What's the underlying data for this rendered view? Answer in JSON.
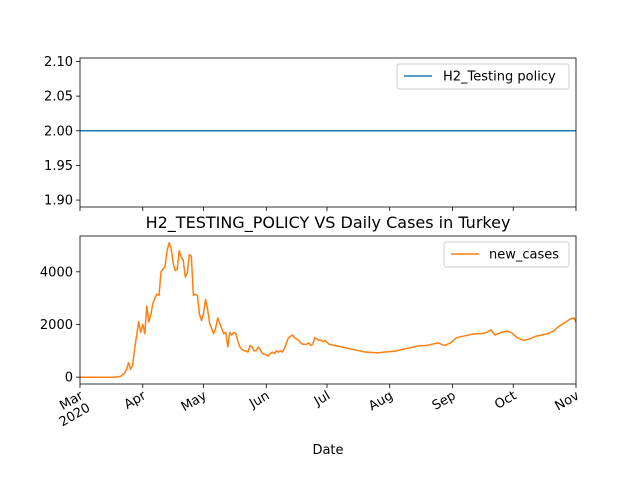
{
  "chart_data": [
    {
      "type": "line",
      "title": "",
      "xlabel": "",
      "ylabel": "",
      "ylim": [
        1.89,
        2.105
      ],
      "yticks": [
        1.9,
        1.95,
        2.0,
        2.05,
        2.1
      ],
      "ytick_labels": [
        "1.90",
        "1.95",
        "2.00",
        "2.05",
        "2.10"
      ],
      "legend": "upper right",
      "grid": false,
      "series": [
        {
          "name": "H2_Testing policy",
          "color": "#1f77b4",
          "x": [
            "2020-03-01",
            "2020-11-01"
          ],
          "values": [
            2.0,
            2.0
          ]
        }
      ]
    },
    {
      "type": "line",
      "title": "H2_TESTING_POLICY VS Daily Cases in Turkey",
      "xlabel": "Date",
      "ylabel": "",
      "ylim": [
        -260,
        5360
      ],
      "yticks": [
        0,
        2000,
        4000
      ],
      "ytick_labels": [
        "0",
        "2000",
        "4000"
      ],
      "xlim": [
        "2020-03-01",
        "2020-11-01"
      ],
      "xtick_labels": [
        {
          "date": "2020-03-01",
          "label": "Mar",
          "sub": "2020"
        },
        {
          "date": "2020-04-01",
          "label": "Apr"
        },
        {
          "date": "2020-05-01",
          "label": "May"
        },
        {
          "date": "2020-06-01",
          "label": "Jun"
        },
        {
          "date": "2020-07-01",
          "label": "Jul"
        },
        {
          "date": "2020-08-01",
          "label": "Aug"
        },
        {
          "date": "2020-09-01",
          "label": "Sep"
        },
        {
          "date": "2020-10-01",
          "label": "Oct"
        },
        {
          "date": "2020-11-01",
          "label": "Nov"
        }
      ],
      "legend": "upper right",
      "grid": false,
      "series": [
        {
          "name": "new_cases",
          "color": "#ff7f0e",
          "points": [
            [
              "2020-03-01",
              0
            ],
            [
              "2020-03-10",
              0
            ],
            [
              "2020-03-18",
              0
            ],
            [
              "2020-03-21",
              30
            ],
            [
              "2020-03-23",
              150
            ],
            [
              "2020-03-24",
              300
            ],
            [
              "2020-03-25",
              550
            ],
            [
              "2020-03-26",
              300
            ],
            [
              "2020-03-27",
              450
            ],
            [
              "2020-03-28",
              1100
            ],
            [
              "2020-03-29",
              1600
            ],
            [
              "2020-03-30",
              2100
            ],
            [
              "2020-03-31",
              1700
            ],
            [
              "2020-04-01",
              2000
            ],
            [
              "2020-04-02",
              1650
            ],
            [
              "2020-04-03",
              2700
            ],
            [
              "2020-04-04",
              2100
            ],
            [
              "2020-04-05",
              2400
            ],
            [
              "2020-04-06",
              2800
            ],
            [
              "2020-04-07",
              3000
            ],
            [
              "2020-04-08",
              3150
            ],
            [
              "2020-04-09",
              3100
            ],
            [
              "2020-04-10",
              4000
            ],
            [
              "2020-04-11",
              4100
            ],
            [
              "2020-04-12",
              4200
            ],
            [
              "2020-04-13",
              4800
            ],
            [
              "2020-04-14",
              5100
            ],
            [
              "2020-04-15",
              4900
            ],
            [
              "2020-04-16",
              4350
            ],
            [
              "2020-04-17",
              4050
            ],
            [
              "2020-04-18",
              4100
            ],
            [
              "2020-04-19",
              4800
            ],
            [
              "2020-04-20",
              4550
            ],
            [
              "2020-04-21",
              4450
            ],
            [
              "2020-04-22",
              3800
            ],
            [
              "2020-04-23",
              3950
            ],
            [
              "2020-04-24",
              4650
            ],
            [
              "2020-04-25",
              4600
            ],
            [
              "2020-04-26",
              3100
            ],
            [
              "2020-04-27",
              3150
            ],
            [
              "2020-04-28",
              3100
            ],
            [
              "2020-04-29",
              2400
            ],
            [
              "2020-04-30",
              2150
            ],
            [
              "2020-05-01",
              2400
            ],
            [
              "2020-05-02",
              2950
            ],
            [
              "2020-05-03",
              2600
            ],
            [
              "2020-05-04",
              2050
            ],
            [
              "2020-05-05",
              1850
            ],
            [
              "2020-05-06",
              1650
            ],
            [
              "2020-05-07",
              1850
            ],
            [
              "2020-05-08",
              2250
            ],
            [
              "2020-05-09",
              2050
            ],
            [
              "2020-05-10",
              1850
            ],
            [
              "2020-05-11",
              1650
            ],
            [
              "2020-05-12",
              1700
            ],
            [
              "2020-05-13",
              1150
            ],
            [
              "2020-05-14",
              1700
            ],
            [
              "2020-05-15",
              1600
            ],
            [
              "2020-05-16",
              1700
            ],
            [
              "2020-05-17",
              1650
            ],
            [
              "2020-05-18",
              1350
            ],
            [
              "2020-05-19",
              1150
            ],
            [
              "2020-05-20",
              1050
            ],
            [
              "2020-05-21",
              1000
            ],
            [
              "2020-05-22",
              1000
            ],
            [
              "2020-05-23",
              950
            ],
            [
              "2020-05-24",
              1200
            ],
            [
              "2020-05-25",
              1150
            ],
            [
              "2020-05-26",
              1000
            ],
            [
              "2020-05-27",
              1000
            ],
            [
              "2020-05-28",
              1150
            ],
            [
              "2020-05-29",
              1050
            ],
            [
              "2020-05-30",
              900
            ],
            [
              "2020-06-01",
              850
            ],
            [
              "2020-06-02",
              800
            ],
            [
              "2020-06-03",
              900
            ],
            [
              "2020-06-04",
              950
            ],
            [
              "2020-06-05",
              900
            ],
            [
              "2020-06-06",
              1000
            ],
            [
              "2020-06-07",
              950
            ],
            [
              "2020-06-08",
              1000
            ],
            [
              "2020-06-09",
              950
            ],
            [
              "2020-06-10",
              1100
            ],
            [
              "2020-06-11",
              1300
            ],
            [
              "2020-06-12",
              1500
            ],
            [
              "2020-06-13",
              1550
            ],
            [
              "2020-06-14",
              1600
            ],
            [
              "2020-06-15",
              1500
            ],
            [
              "2020-06-16",
              1450
            ],
            [
              "2020-06-17",
              1400
            ],
            [
              "2020-06-18",
              1300
            ],
            [
              "2020-06-19",
              1250
            ],
            [
              "2020-06-20",
              1250
            ],
            [
              "2020-06-21",
              1250
            ],
            [
              "2020-06-22",
              1300
            ],
            [
              "2020-06-23",
              1200
            ],
            [
              "2020-06-24",
              1250
            ],
            [
              "2020-06-25",
              1500
            ],
            [
              "2020-06-26",
              1450
            ],
            [
              "2020-06-27",
              1400
            ],
            [
              "2020-06-28",
              1400
            ],
            [
              "2020-06-29",
              1350
            ],
            [
              "2020-06-30",
              1400
            ],
            [
              "2020-07-02",
              1250
            ],
            [
              "2020-07-05",
              1200
            ],
            [
              "2020-07-08",
              1150
            ],
            [
              "2020-07-11",
              1100
            ],
            [
              "2020-07-14",
              1050
            ],
            [
              "2020-07-17",
              1000
            ],
            [
              "2020-07-20",
              950
            ],
            [
              "2020-07-23",
              940
            ],
            [
              "2020-07-26",
              920
            ],
            [
              "2020-07-29",
              950
            ],
            [
              "2020-08-01",
              970
            ],
            [
              "2020-08-04",
              990
            ],
            [
              "2020-08-07",
              1050
            ],
            [
              "2020-08-10",
              1100
            ],
            [
              "2020-08-13",
              1150
            ],
            [
              "2020-08-16",
              1200
            ],
            [
              "2020-08-19",
              1200
            ],
            [
              "2020-08-22",
              1250
            ],
            [
              "2020-08-25",
              1300
            ],
            [
              "2020-08-28",
              1200
            ],
            [
              "2020-08-31",
              1300
            ],
            [
              "2020-09-03",
              1500
            ],
            [
              "2020-09-06",
              1550
            ],
            [
              "2020-09-09",
              1600
            ],
            [
              "2020-09-12",
              1650
            ],
            [
              "2020-09-15",
              1650
            ],
            [
              "2020-09-18",
              1700
            ],
            [
              "2020-09-20",
              1800
            ],
            [
              "2020-09-22",
              1600
            ],
            [
              "2020-09-25",
              1700
            ],
            [
              "2020-09-28",
              1750
            ],
            [
              "2020-09-30",
              1700
            ],
            [
              "2020-10-03",
              1500
            ],
            [
              "2020-10-06",
              1400
            ],
            [
              "2020-10-09",
              1450
            ],
            [
              "2020-10-12",
              1550
            ],
            [
              "2020-10-15",
              1600
            ],
            [
              "2020-10-18",
              1650
            ],
            [
              "2020-10-21",
              1750
            ],
            [
              "2020-10-23",
              1900
            ],
            [
              "2020-10-25",
              2000
            ],
            [
              "2020-10-27",
              2100
            ],
            [
              "2020-10-29",
              2200
            ],
            [
              "2020-10-31",
              2250
            ],
            [
              "2020-11-01",
              2100
            ]
          ]
        }
      ]
    }
  ]
}
